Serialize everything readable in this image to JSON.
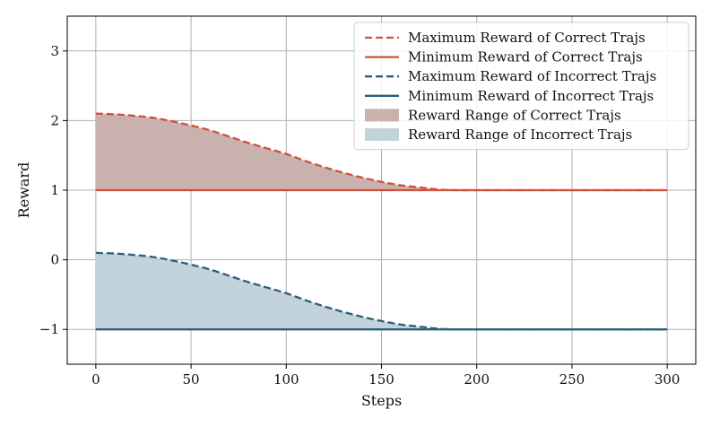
{
  "chart_data": {
    "type": "line",
    "title": "",
    "xlabel": "Steps",
    "ylabel": "Reward",
    "xlim": [
      -15,
      315
    ],
    "ylim": [
      -1.5,
      3.5
    ],
    "xticks": [
      0,
      50,
      100,
      150,
      200,
      250,
      300
    ],
    "yticks": [
      -1,
      0,
      1,
      2,
      3
    ],
    "xtick_labels": [
      "0",
      "50",
      "100",
      "150",
      "200",
      "250",
      "300"
    ],
    "ytick_labels": [
      "−1",
      "0",
      "1",
      "2",
      "3"
    ],
    "grid": true,
    "legend_position": "top-right",
    "colors": {
      "correct": "#d1503a",
      "incorrect": "#2e5f79",
      "correct_fill": "#c9b2ae",
      "incorrect_fill": "#c3d3db"
    },
    "x": [
      0,
      10,
      20,
      30,
      40,
      50,
      60,
      70,
      80,
      90,
      100,
      110,
      120,
      130,
      140,
      150,
      160,
      170,
      180,
      190,
      200,
      210,
      220,
      230,
      240,
      250,
      260,
      270,
      280,
      290,
      300
    ],
    "series": [
      {
        "name": "Maximum Reward of Correct Trajs",
        "style": "dashed",
        "color": "#d1503a",
        "values": [
          2.1,
          2.09,
          2.07,
          2.04,
          1.99,
          1.93,
          1.86,
          1.77,
          1.68,
          1.6,
          1.52,
          1.42,
          1.33,
          1.25,
          1.18,
          1.12,
          1.07,
          1.04,
          1.01,
          1.0,
          1.0,
          1.0,
          1.0,
          1.0,
          1.0,
          1.0,
          1.0,
          1.0,
          1.0,
          1.0,
          1.0
        ]
      },
      {
        "name": "Minimum Reward of Correct Trajs",
        "style": "solid",
        "color": "#d1503a",
        "values": [
          1.0,
          1.0,
          1.0,
          1.0,
          1.0,
          1.0,
          1.0,
          1.0,
          1.0,
          1.0,
          1.0,
          1.0,
          1.0,
          1.0,
          1.0,
          1.0,
          1.0,
          1.0,
          1.0,
          1.0,
          1.0,
          1.0,
          1.0,
          1.0,
          1.0,
          1.0,
          1.0,
          1.0,
          1.0,
          1.0,
          1.0
        ]
      },
      {
        "name": "Maximum Reward of Incorrect Trajs",
        "style": "dashed",
        "color": "#2e5f79",
        "values": [
          0.1,
          0.09,
          0.07,
          0.04,
          -0.01,
          -0.07,
          -0.14,
          -0.23,
          -0.32,
          -0.4,
          -0.48,
          -0.58,
          -0.67,
          -0.75,
          -0.82,
          -0.88,
          -0.93,
          -0.96,
          -0.99,
          -1.0,
          -1.0,
          -1.0,
          -1.0,
          -1.0,
          -1.0,
          -1.0,
          -1.0,
          -1.0,
          -1.0,
          -1.0,
          -1.0
        ]
      },
      {
        "name": "Minimum Reward of Incorrect Trajs",
        "style": "solid",
        "color": "#2e5f79",
        "values": [
          -1.0,
          -1.0,
          -1.0,
          -1.0,
          -1.0,
          -1.0,
          -1.0,
          -1.0,
          -1.0,
          -1.0,
          -1.0,
          -1.0,
          -1.0,
          -1.0,
          -1.0,
          -1.0,
          -1.0,
          -1.0,
          -1.0,
          -1.0,
          -1.0,
          -1.0,
          -1.0,
          -1.0,
          -1.0,
          -1.0,
          -1.0,
          -1.0,
          -1.0,
          -1.0,
          -1.0
        ]
      }
    ],
    "areas": [
      {
        "name": "Reward Range of Correct Trajs",
        "upper_series": 0,
        "lower_series": 1,
        "color": "#c9b2ae"
      },
      {
        "name": "Reward Range of Incorrect Trajs",
        "upper_series": 2,
        "lower_series": 3,
        "color": "#c3d3db"
      }
    ],
    "legend": [
      {
        "label": "Maximum Reward of Correct Trajs",
        "kind": "line",
        "style": "dashed",
        "color": "#d1503a"
      },
      {
        "label": "Minimum Reward of Correct Trajs",
        "kind": "line",
        "style": "solid",
        "color": "#d1503a"
      },
      {
        "label": "Maximum Reward of Incorrect Trajs",
        "kind": "line",
        "style": "dashed",
        "color": "#2e5f79"
      },
      {
        "label": "Minimum Reward of Incorrect Trajs",
        "kind": "line",
        "style": "solid",
        "color": "#2e5f79"
      },
      {
        "label": "Reward Range of Correct Trajs",
        "kind": "patch",
        "color": "#c9b2ae"
      },
      {
        "label": "Reward Range of Incorrect Trajs",
        "kind": "patch",
        "color": "#c3d3db"
      }
    ]
  }
}
